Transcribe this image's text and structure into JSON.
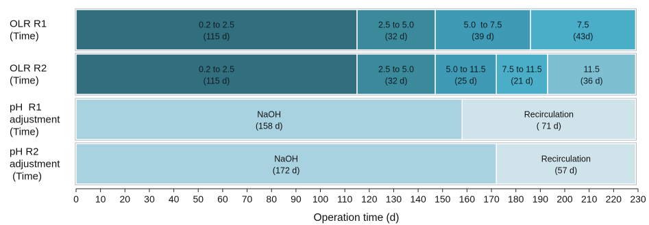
{
  "chart_data": {
    "type": "bar",
    "subtype": "horizontal-stacked-timeline",
    "xlabel": "Operation time (d)",
    "xlim": [
      0,
      230
    ],
    "xticks": [
      0,
      10,
      20,
      30,
      40,
      50,
      60,
      70,
      80,
      90,
      100,
      110,
      120,
      130,
      140,
      150,
      160,
      170,
      180,
      190,
      200,
      210,
      220,
      230
    ],
    "grid": false,
    "rows": [
      {
        "label_lines": [
          "OLR R1",
          "(Time)"
        ],
        "segments": [
          {
            "start": 0,
            "end": 115,
            "line1": "0.2 to 2.5",
            "line2": "(115 d)",
            "color": "#316f7f",
            "text_color": "#0d1c21"
          },
          {
            "start": 115,
            "end": 147,
            "line1": "2.5 to 5.0",
            "line2": "(32 d)",
            "color": "#3b8a9c",
            "text_color": "#0d1c21"
          },
          {
            "start": 147,
            "end": 186,
            "line1": "5.0  to 7.5",
            "line2": "(39 d)",
            "color": "#3f9ab5",
            "text_color": "#0d1c21"
          },
          {
            "start": 186,
            "end": 229,
            "line1": "7.5",
            "line2": "(43d)",
            "color": "#4aaec9",
            "text_color": "#0d1c21"
          }
        ]
      },
      {
        "label_lines": [
          "OLR R2",
          "(Time)"
        ],
        "segments": [
          {
            "start": 0,
            "end": 115,
            "line1": "0.2 to 2.5",
            "line2": "(115 d)",
            "color": "#316f7f",
            "text_color": "#0d1c21"
          },
          {
            "start": 115,
            "end": 147,
            "line1": "2.5 to 5.0",
            "line2": "(32 d)",
            "color": "#3b8a9c",
            "text_color": "#0d1c21"
          },
          {
            "start": 147,
            "end": 172,
            "line1": "5.0 to 11.5",
            "line2": "(25 d)",
            "color": "#3f9ab5",
            "text_color": "#0d1c21"
          },
          {
            "start": 172,
            "end": 193,
            "line1": "7.5 to 11.5",
            "line2": "(21 d)",
            "color": "#4aaec9",
            "text_color": "#0d1c21"
          },
          {
            "start": 193,
            "end": 229,
            "line1": "11.5",
            "line2": "(36 d)",
            "color": "#7fbfd2",
            "text_color": "#0d1c21"
          }
        ]
      },
      {
        "label_lines": [
          "pH  R1",
          "adjustment",
          "(Time)"
        ],
        "segments": [
          {
            "start": 0,
            "end": 158,
            "line1": "NaOH",
            "line2": "(158 d)",
            "color": "#a9d2e0",
            "text_color": "#111111"
          },
          {
            "start": 158,
            "end": 229,
            "line1": "Recirculation",
            "line2": "( 71 d)",
            "color": "#cfe3ea",
            "text_color": "#111111"
          }
        ]
      },
      {
        "label_lines": [
          "pH R2",
          "adjustment",
          " (Time)"
        ],
        "segments": [
          {
            "start": 0,
            "end": 172,
            "line1": "NaOH",
            "line2": "(172 d)",
            "color": "#a9d2e0",
            "text_color": "#111111"
          },
          {
            "start": 172,
            "end": 229,
            "line1": "Recirculation",
            "line2": "(57 d)",
            "color": "#cfe3ea",
            "text_color": "#111111"
          }
        ]
      }
    ]
  }
}
